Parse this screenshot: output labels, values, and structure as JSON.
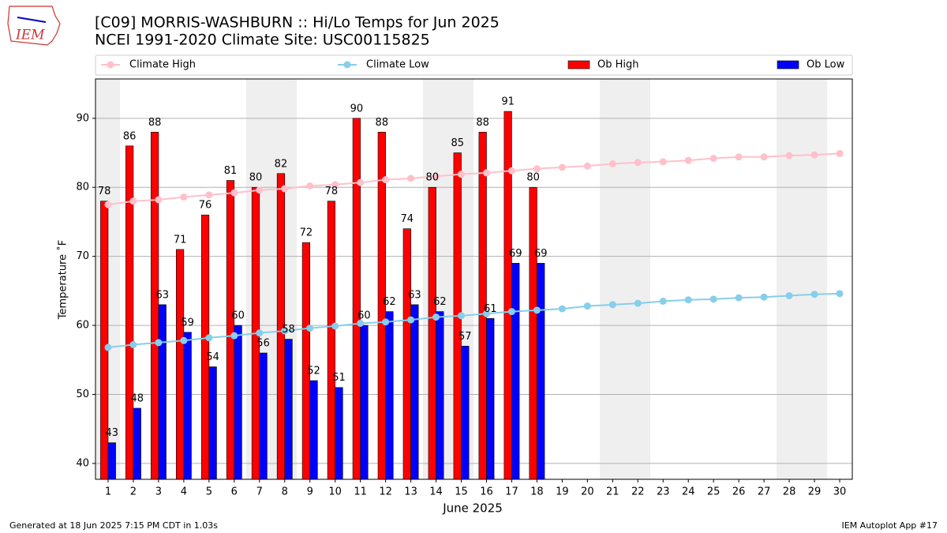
{
  "logo_text": "IEM",
  "footer_left": "Generated at 18 Jun 2025 7:15 PM CDT in 1.03s",
  "footer_right": "IEM Autoplot App #17",
  "chart_data": {
    "type": "bar",
    "title": "[C09] MORRIS-WASHBURN :: Hi/Lo Temps for Jun 2025",
    "subtitle": "NCEI 1991-2020 Climate Site: USC00115825",
    "x_label": "June 2025",
    "y_label": "Temperature ˚F",
    "x": [
      1,
      2,
      3,
      4,
      5,
      6,
      7,
      8,
      9,
      10,
      11,
      12,
      13,
      14,
      15,
      16,
      17,
      18,
      19,
      20,
      21,
      22,
      23,
      24,
      25,
      26,
      27,
      28,
      29,
      30
    ],
    "xlim": [
      0.5,
      30.5
    ],
    "xticks": [
      1,
      2,
      3,
      4,
      5,
      6,
      7,
      8,
      9,
      10,
      11,
      12,
      13,
      14,
      15,
      16,
      17,
      18,
      19,
      20,
      21,
      22,
      23,
      24,
      25,
      26,
      27,
      28,
      29,
      30
    ],
    "ylim": [
      37.7,
      95.7
    ],
    "yticks": [
      40,
      50,
      60,
      70,
      80,
      90
    ],
    "grid": true,
    "legend": "top",
    "series": [
      {
        "name": "Climate High",
        "type": "line",
        "color": "#ffc0cb",
        "values": [
          77.5,
          78.0,
          78.2,
          78.6,
          78.9,
          79.2,
          79.6,
          79.8,
          80.2,
          80.4,
          80.7,
          81.1,
          81.3,
          81.6,
          81.9,
          82.1,
          82.4,
          82.7,
          82.9,
          83.1,
          83.4,
          83.6,
          83.7,
          83.9,
          84.2,
          84.4,
          84.4,
          84.6,
          84.7,
          84.9
        ]
      },
      {
        "name": "Climate Low",
        "type": "line",
        "color": "#87ceeb",
        "values": [
          56.8,
          57.2,
          57.5,
          57.8,
          58.2,
          58.5,
          58.9,
          59.2,
          59.6,
          59.9,
          60.3,
          60.5,
          60.8,
          61.2,
          61.4,
          61.7,
          62.0,
          62.2,
          62.4,
          62.8,
          63.0,
          63.2,
          63.5,
          63.7,
          63.8,
          64.0,
          64.1,
          64.3,
          64.5,
          64.6
        ]
      },
      {
        "name": "Ob High",
        "type": "bar",
        "color": "#ff0000",
        "values": [
          78,
          86,
          88,
          71,
          76,
          81,
          80,
          82,
          72,
          78,
          90,
          88,
          74,
          80,
          85,
          88,
          91,
          80,
          null,
          null,
          null,
          null,
          null,
          null,
          null,
          null,
          null,
          null,
          null,
          null
        ]
      },
      {
        "name": "Ob Low",
        "type": "bar",
        "color": "#0000ff",
        "values": [
          43,
          48,
          63,
          59,
          54,
          60,
          56,
          58,
          52,
          51,
          60,
          62,
          63,
          62,
          57,
          61,
          69,
          69,
          null,
          null,
          null,
          null,
          null,
          null,
          null,
          null,
          null,
          null,
          null,
          null
        ]
      }
    ]
  }
}
